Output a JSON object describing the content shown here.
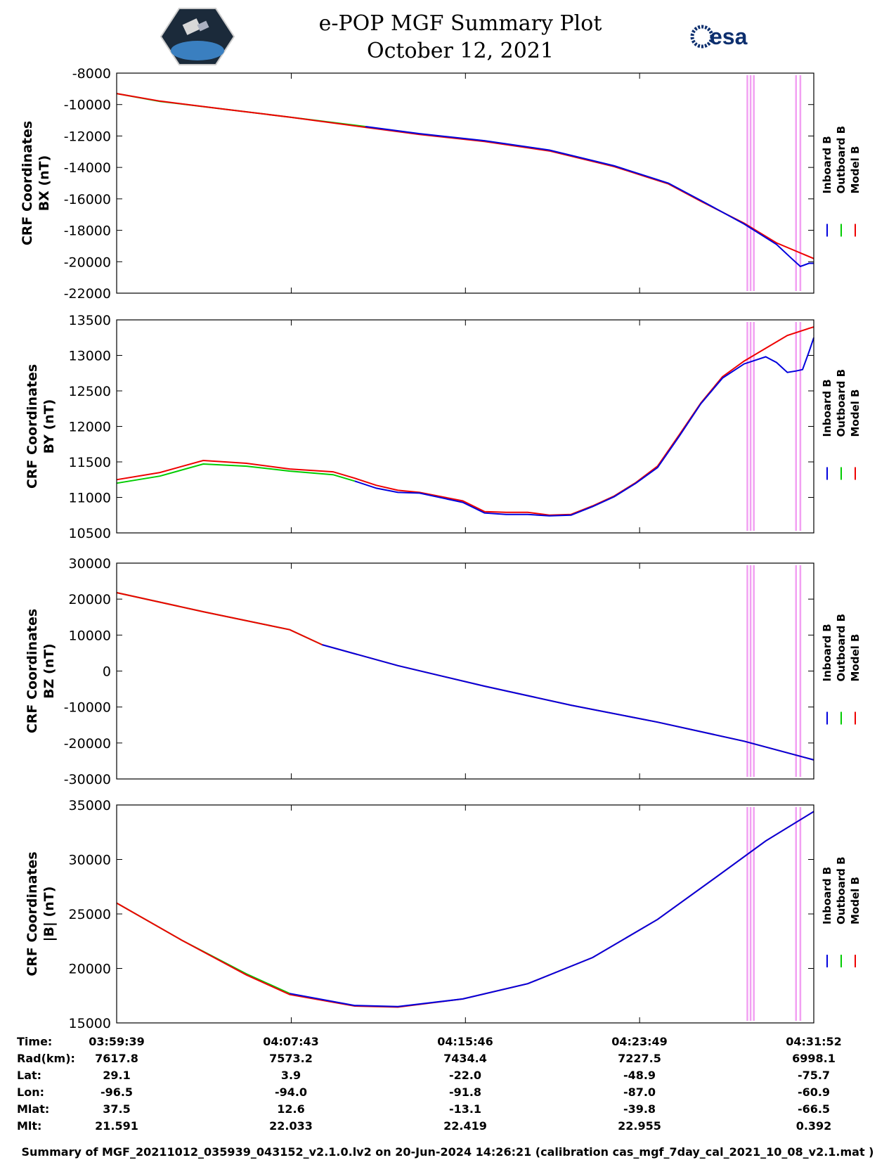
{
  "header": {
    "title_line1": "e-POP MGF Summary Plot",
    "title_line2": "October 12, 2021",
    "left_logo_text": "CASSIOPE",
    "right_logo_text": "esa"
  },
  "legend": {
    "inboard": "Inboard B",
    "outboard": "Outboard B",
    "model": "Model B"
  },
  "colors": {
    "inboard": "#0000dd",
    "outboard": "#00cc00",
    "model": "#ee0000",
    "flag": "#f2a0f2"
  },
  "chart_data": [
    {
      "type": "line",
      "ylabel_line1": "CRF Coordinates",
      "ylabel_line2": "BX (nT)",
      "ylim": [
        -22000,
        -8000
      ],
      "yticks": [
        -22000,
        -20000,
        -18000,
        -16000,
        -14000,
        -12000,
        -10000,
        -8000
      ],
      "xlim": [
        0,
        32.22
      ],
      "series": [
        {
          "name": "Outboard B",
          "points": [
            [
              0,
              -9300
            ],
            [
              2,
              -9800
            ],
            [
              5,
              -10300
            ],
            [
              8,
              -10800
            ],
            [
              11.5,
              -11400
            ]
          ]
        },
        {
          "name": "Inboard B",
          "points": [
            [
              11.5,
              -11400
            ],
            [
              14,
              -11850
            ],
            [
              17,
              -12300
            ],
            [
              20,
              -12900
            ],
            [
              23,
              -13900
            ],
            [
              25.5,
              -15000
            ],
            [
              27,
              -16100
            ],
            [
              29,
              -17600
            ],
            [
              30.5,
              -18900
            ],
            [
              31.2,
              -19800
            ],
            [
              31.6,
              -20300
            ],
            [
              32,
              -20100
            ],
            [
              32.22,
              -20100
            ]
          ]
        },
        {
          "name": "Model B",
          "points": [
            [
              0,
              -9300
            ],
            [
              2,
              -9780
            ],
            [
              5,
              -10300
            ],
            [
              8,
              -10800
            ],
            [
              11.5,
              -11450
            ],
            [
              14,
              -11900
            ],
            [
              17,
              -12350
            ],
            [
              20,
              -12950
            ],
            [
              23,
              -13950
            ],
            [
              25.5,
              -15050
            ],
            [
              27,
              -16150
            ],
            [
              29,
              -17550
            ],
            [
              30.5,
              -18800
            ],
            [
              32.22,
              -19800
            ]
          ]
        }
      ]
    },
    {
      "type": "line",
      "ylabel_line1": "CRF Coordinates",
      "ylabel_line2": "BY (nT)",
      "ylim": [
        10500,
        13500
      ],
      "yticks": [
        10500,
        11000,
        11500,
        12000,
        12500,
        13000,
        13500
      ],
      "xlim": [
        0,
        32.22
      ],
      "series": [
        {
          "name": "Outboard B",
          "points": [
            [
              0,
              11200
            ],
            [
              2,
              11300
            ],
            [
              4,
              11470
            ],
            [
              6,
              11440
            ],
            [
              8,
              11370
            ],
            [
              10,
              11320
            ],
            [
              11,
              11230
            ]
          ]
        },
        {
          "name": "Inboard B",
          "points": [
            [
              11,
              11230
            ],
            [
              12,
              11130
            ],
            [
              13,
              11070
            ],
            [
              14,
              11060
            ],
            [
              16,
              10930
            ],
            [
              17,
              10780
            ],
            [
              18,
              10760
            ],
            [
              19,
              10760
            ],
            [
              20,
              10740
            ],
            [
              21,
              10750
            ],
            [
              22,
              10870
            ],
            [
              23,
              11010
            ],
            [
              24,
              11200
            ],
            [
              25,
              11420
            ],
            [
              26,
              11860
            ],
            [
              27,
              12320
            ],
            [
              28,
              12680
            ],
            [
              29,
              12880
            ],
            [
              30,
              12980
            ],
            [
              30.5,
              12900
            ],
            [
              31,
              12760
            ],
            [
              31.4,
              12780
            ],
            [
              31.7,
              12800
            ],
            [
              32,
              13050
            ],
            [
              32.22,
              13250
            ]
          ]
        },
        {
          "name": "Model B",
          "points": [
            [
              0,
              11250
            ],
            [
              2,
              11350
            ],
            [
              4,
              11520
            ],
            [
              6,
              11480
            ],
            [
              8,
              11400
            ],
            [
              10,
              11360
            ],
            [
              11,
              11270
            ],
            [
              12,
              11170
            ],
            [
              13,
              11100
            ],
            [
              14,
              11070
            ],
            [
              16,
              10950
            ],
            [
              17,
              10800
            ],
            [
              18,
              10790
            ],
            [
              19,
              10790
            ],
            [
              20,
              10750
            ],
            [
              21,
              10760
            ],
            [
              22,
              10880
            ],
            [
              23,
              11020
            ],
            [
              24,
              11210
            ],
            [
              25,
              11440
            ],
            [
              26,
              11880
            ],
            [
              27,
              12330
            ],
            [
              28,
              12700
            ],
            [
              29,
              12920
            ],
            [
              30,
              13100
            ],
            [
              31,
              13280
            ],
            [
              32,
              13380
            ],
            [
              32.22,
              13400
            ]
          ]
        }
      ]
    },
    {
      "type": "line",
      "ylabel_line1": "CRF Coordinates",
      "ylabel_line2": "BZ (nT)",
      "ylim": [
        -30000,
        30000
      ],
      "yticks": [
        -30000,
        -20000,
        -10000,
        0,
        10000,
        20000,
        30000
      ],
      "xlim": [
        0,
        32.22
      ],
      "series": [
        {
          "name": "Outboard B",
          "points": [
            [
              0,
              21800
            ],
            [
              4,
              16500
            ],
            [
              8,
              11500
            ],
            [
              9.5,
              7300
            ]
          ]
        },
        {
          "name": "Inboard B",
          "points": [
            [
              9.5,
              7300
            ],
            [
              13,
              1500
            ],
            [
              17,
              -4200
            ],
            [
              21,
              -9500
            ],
            [
              25,
              -14200
            ],
            [
              29,
              -19500
            ],
            [
              32.22,
              -24700
            ]
          ]
        },
        {
          "name": "Model B",
          "points": [
            [
              0,
              21800
            ],
            [
              4,
              16500
            ],
            [
              8,
              11500
            ],
            [
              9.5,
              7300
            ],
            [
              13,
              1500
            ],
            [
              17,
              -4200
            ],
            [
              21,
              -9500
            ],
            [
              25,
              -14200
            ],
            [
              29,
              -19500
            ],
            [
              32.22,
              -24700
            ]
          ]
        }
      ]
    },
    {
      "type": "line",
      "ylabel_line1": "CRF Coordinates",
      "ylabel_line2": "|B| (nT)",
      "ylim": [
        15000,
        35000
      ],
      "yticks": [
        15000,
        20000,
        25000,
        30000,
        35000
      ],
      "xlim": [
        0,
        32.22
      ],
      "series": [
        {
          "name": "Outboard B",
          "points": [
            [
              0,
              26000
            ],
            [
              3,
              22600
            ],
            [
              6,
              19500
            ],
            [
              8,
              17700
            ]
          ]
        },
        {
          "name": "Inboard B",
          "points": [
            [
              8,
              17700
            ],
            [
              11,
              16600
            ],
            [
              13,
              16500
            ],
            [
              16,
              17200
            ],
            [
              19,
              18600
            ],
            [
              22,
              21000
            ],
            [
              25,
              24500
            ],
            [
              28,
              28800
            ],
            [
              30,
              31700
            ],
            [
              32.22,
              34400
            ]
          ]
        },
        {
          "name": "Model B",
          "points": [
            [
              0,
              26000
            ],
            [
              3,
              22600
            ],
            [
              6,
              19400
            ],
            [
              8,
              17600
            ],
            [
              11,
              16550
            ],
            [
              13,
              16450
            ],
            [
              16,
              17200
            ],
            [
              19,
              18600
            ],
            [
              22,
              21000
            ],
            [
              25,
              24500
            ],
            [
              28,
              28800
            ],
            [
              30,
              31700
            ],
            [
              32.22,
              34400
            ]
          ]
        }
      ]
    }
  ],
  "flag_times": [
    29.15,
    29.3,
    29.45,
    31.4,
    31.6
  ],
  "xticks": [
    0,
    8.07,
    16.12,
    24.17,
    32.22
  ],
  "ephemeris": {
    "labels": [
      "Time:",
      "Rad(km):",
      "Lat:",
      "Lon:",
      "Mlat:",
      "Mlt:"
    ],
    "columns": [
      [
        "03:59:39",
        "7617.8",
        "29.1",
        "-96.5",
        "37.5",
        "21.591"
      ],
      [
        "04:07:43",
        "7573.2",
        "3.9",
        "-94.0",
        "12.6",
        "22.033"
      ],
      [
        "04:15:46",
        "7434.4",
        "-22.0",
        "-91.8",
        "-13.1",
        "22.419"
      ],
      [
        "04:23:49",
        "7227.5",
        "-48.9",
        "-87.0",
        "-39.8",
        "22.955"
      ],
      [
        "04:31:52",
        "6998.1",
        "-75.7",
        "-60.9",
        "-66.5",
        "0.392"
      ]
    ]
  },
  "footer": "Summary of MGF_20211012_035939_043152_v2.1.0.lv2 on 20-Jun-2024 14:26:21 (calibration cas_mgf_7day_cal_2021_10_08_v2.1.mat )"
}
